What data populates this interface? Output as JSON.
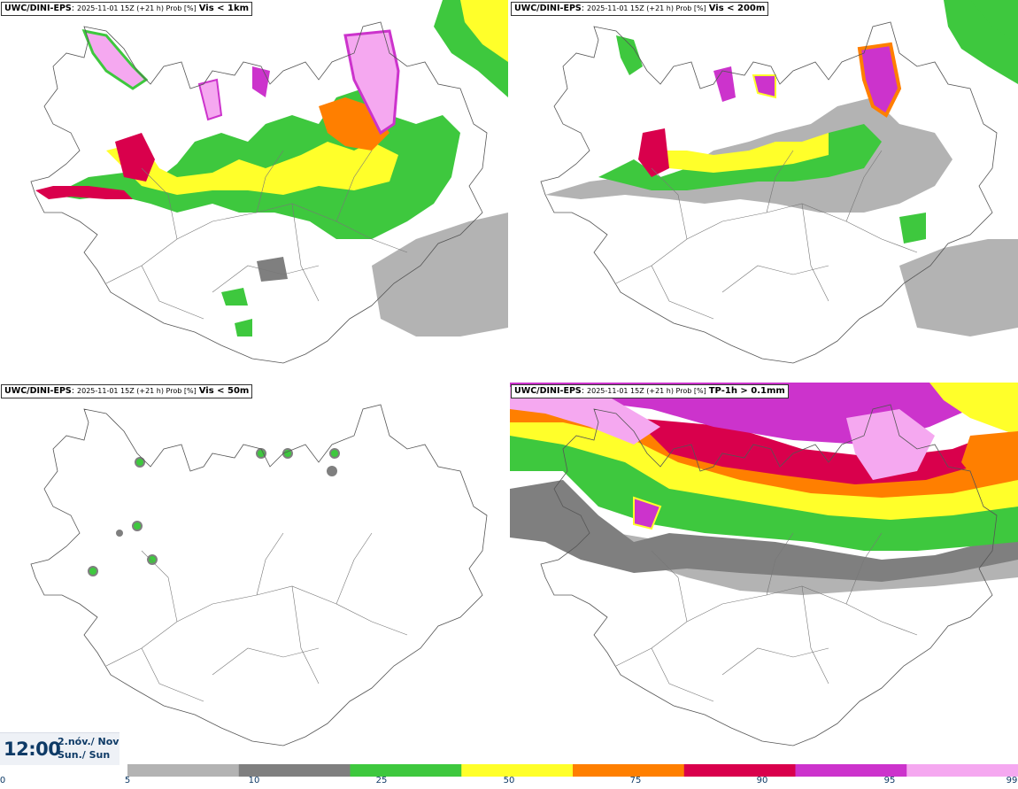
{
  "panels": [
    {
      "model": "UWC/DINI-EPS",
      "meta": "2025-11-01 15Z (+21 h) Prob [%]",
      "variable": "Vis < 1km"
    },
    {
      "model": "UWC/DINI-EPS",
      "meta": "2025-11-01 15Z (+21 h) Prob [%]",
      "variable": "Vis < 200m"
    },
    {
      "model": "UWC/DINI-EPS",
      "meta": "2025-11-01 15Z (+21 h) Prob [%]",
      "variable": "Vis < 50m"
    },
    {
      "model": "UWC/DINI-EPS",
      "meta": "2025-11-01 15Z (+21 h) Prob [%]",
      "variable": "TP-1h > 0.1mm"
    }
  ],
  "time": {
    "clock": "12:00",
    "date": "2.nóv./ Nov",
    "weekday": "Sun./ Sun"
  },
  "colorbar": {
    "ticks": [
      "0",
      "5",
      "10",
      "25",
      "50",
      "75",
      "90",
      "95",
      "99"
    ],
    "colors": [
      "#ffffff",
      "#b3b3b3",
      "#7f7f7f",
      "#3ec83e",
      "#ffff2a",
      "#ff7f00",
      "#d9004c",
      "#cc33cc",
      "#f5a8f0"
    ]
  },
  "colors": {
    "prob_5": "#b3b3b3",
    "prob_10": "#7f7f7f",
    "prob_25": "#3ec83e",
    "prob_50": "#ffff2a",
    "prob_75": "#ff7f00",
    "prob_90": "#d9004c",
    "prob_95": "#cc33cc",
    "prob_99": "#f5a8f0",
    "coastline": "#555555"
  }
}
